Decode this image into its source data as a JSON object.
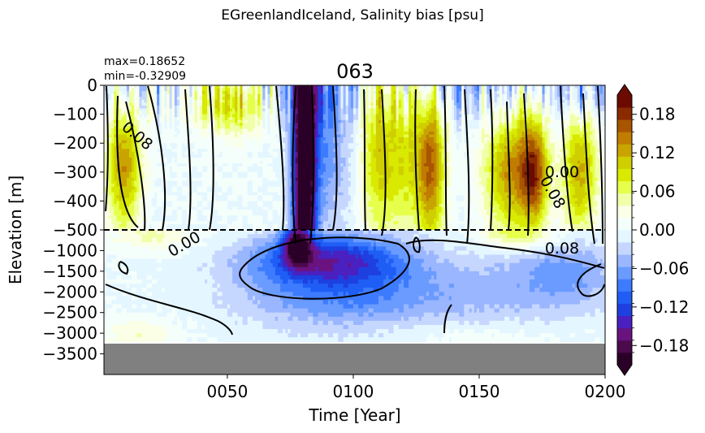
{
  "chart_data": {
    "type": "heatmap",
    "suptitle": "EGreenlandIceland, Salinity bias [psu]",
    "title": "063",
    "stats": {
      "max": "max=0.18652",
      "min": "min=-0.32909"
    },
    "xlabel": "Time [Year]",
    "ylabel": "Elevation [m]",
    "x_range": [
      1,
      200
    ],
    "x_ticks": [
      50,
      100,
      150,
      200
    ],
    "x_tick_labels": [
      "0050",
      "0100",
      "0150",
      "0200"
    ],
    "y_ticks": [
      0,
      -100,
      -200,
      -300,
      -400,
      -500,
      -1000,
      -1500,
      -2000,
      -2500,
      -3000,
      -3500
    ],
    "y_tick_labels": [
      "0",
      "−100",
      "−200",
      "−300",
      "−400",
      "−500",
      "−1000",
      "−1500",
      "−2000",
      "−2500",
      "−3000",
      "−3500"
    ],
    "y_axis_note": "split axis: 0 to -500 m upper panel, -500 to -4000 m lower panel",
    "reference_line": {
      "elevation": -500,
      "style": "dashed"
    },
    "colorbar": {
      "range": [
        -0.21,
        0.21
      ],
      "ticks": [
        -0.18,
        -0.12,
        -0.06,
        0.0,
        0.06,
        0.12,
        0.18
      ],
      "tick_labels": [
        "−0.18",
        "−0.12",
        "−0.06",
        "0.00",
        "0.06",
        "0.12",
        "0.18"
      ],
      "extend": "both",
      "colors": [
        "#2b0028",
        "#4b0a4c",
        "#6a1380",
        "#4a20c0",
        "#1e40e0",
        "#1f5ef5",
        "#3d7bff",
        "#6a9bff",
        "#9ab6ff",
        "#c6d7ff",
        "#e4f6ff",
        "#f4fffb",
        "#fbffe6",
        "#f0ffa8",
        "#e6ff4a",
        "#d9ea00",
        "#cfcf00",
        "#c9a400",
        "#c07d00",
        "#a85500",
        "#8a2a00",
        "#6a0a00"
      ],
      "under_color": "#2b0028",
      "over_color": "#6a0a00"
    },
    "contour_labels": [
      "0.08",
      "0.00",
      "0.00",
      "0.08",
      "0.08"
    ],
    "ocean_floor_color": "#808080"
  }
}
